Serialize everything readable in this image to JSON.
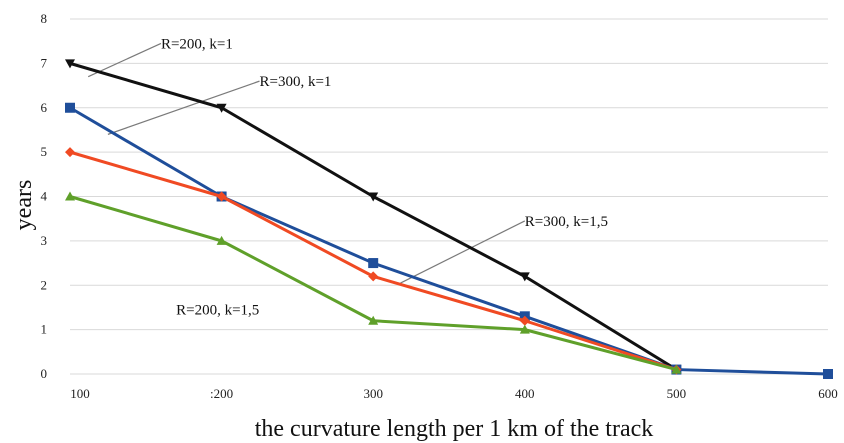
{
  "chart_data": {
    "type": "line",
    "xlabel": "the curvature length per 1 km of the track",
    "ylabel": "years",
    "x_ticks": [
      "100",
      ":200",
      "300",
      "400",
      "500",
      "600"
    ],
    "y_ticks": [
      "0",
      "1",
      "2",
      "3",
      "4",
      "5",
      "6",
      "7",
      "8"
    ],
    "xlim": [
      100,
      600
    ],
    "ylim": [
      0,
      8
    ],
    "grid": true,
    "x": [
      100,
      200,
      300,
      400,
      500,
      600
    ],
    "series": [
      {
        "name": "R=200, k=1",
        "color": "#111111",
        "marker": "triangle-down",
        "x": [
          100,
          200,
          300,
          400,
          500
        ],
        "values": [
          7.0,
          6.0,
          4.0,
          2.2,
          0.1
        ]
      },
      {
        "name": "R=300, k=1",
        "color": "#1f4e9a",
        "marker": "square",
        "x": [
          100,
          200,
          300,
          400,
          500,
          600
        ],
        "values": [
          6.0,
          4.0,
          2.5,
          1.3,
          0.1,
          0.0
        ]
      },
      {
        "name": "R=300, k=1,5",
        "color": "#f04a23",
        "marker": "diamond",
        "x": [
          100,
          200,
          300,
          400,
          500
        ],
        "values": [
          5.0,
          4.0,
          2.2,
          1.2,
          0.1
        ]
      },
      {
        "name": "R=200, k=1,5",
        "color": "#5fa02a",
        "marker": "triangle-up",
        "x": [
          100,
          200,
          300,
          400,
          500
        ],
        "values": [
          4.0,
          3.0,
          1.2,
          1.0,
          0.1
        ]
      }
    ],
    "annotations": [
      {
        "text": "R=200, k=1",
        "series": 0,
        "point": [
          112,
          6.7
        ],
        "label_at": [
          160,
          7.45
        ]
      },
      {
        "text": "R=300, k=1",
        "series": 1,
        "point": [
          125,
          5.4
        ],
        "label_at": [
          225,
          6.6
        ]
      },
      {
        "text": "R=300, k=1,5",
        "series": 2,
        "point": [
          318,
          2.05
        ],
        "label_at": [
          400,
          3.45
        ]
      },
      {
        "text": "R=200, k=1,5",
        "series": 3,
        "point": null,
        "label_at": [
          170,
          1.45
        ]
      }
    ],
    "colors": {
      "grid": "#d9d9d9",
      "leader": "#7a7a7a"
    }
  }
}
